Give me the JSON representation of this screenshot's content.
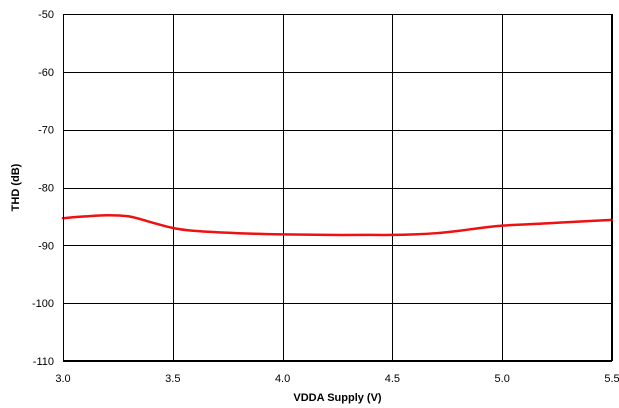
{
  "chart_data": {
    "type": "line",
    "title": "",
    "xlabel": "VDDA Supply (V)",
    "ylabel": "THD (dB)",
    "xlim": [
      3.0,
      5.5
    ],
    "ylim": [
      -110,
      -50
    ],
    "x_ticks": [
      "3.0",
      "3.5",
      "4.0",
      "4.5",
      "5.0",
      "5.5"
    ],
    "y_ticks": [
      "-50",
      "-60",
      "-70",
      "-80",
      "-90",
      "-100",
      "-110"
    ],
    "grid": true,
    "legend": "none",
    "series": [
      {
        "color": "#ee1111",
        "x": [
          3.0,
          3.1,
          3.2,
          3.3,
          3.4,
          3.5,
          3.6,
          3.8,
          4.0,
          4.2,
          4.4,
          4.5,
          4.6,
          4.7,
          4.8,
          4.9,
          5.0,
          5.2,
          5.4,
          5.5
        ],
        "y": [
          -85.3,
          -85.0,
          -84.8,
          -85.0,
          -86.0,
          -87.0,
          -87.5,
          -87.9,
          -88.1,
          -88.2,
          -88.2,
          -88.2,
          -88.1,
          -87.9,
          -87.5,
          -87.0,
          -86.6,
          -86.2,
          -85.8,
          -85.6
        ]
      }
    ]
  }
}
